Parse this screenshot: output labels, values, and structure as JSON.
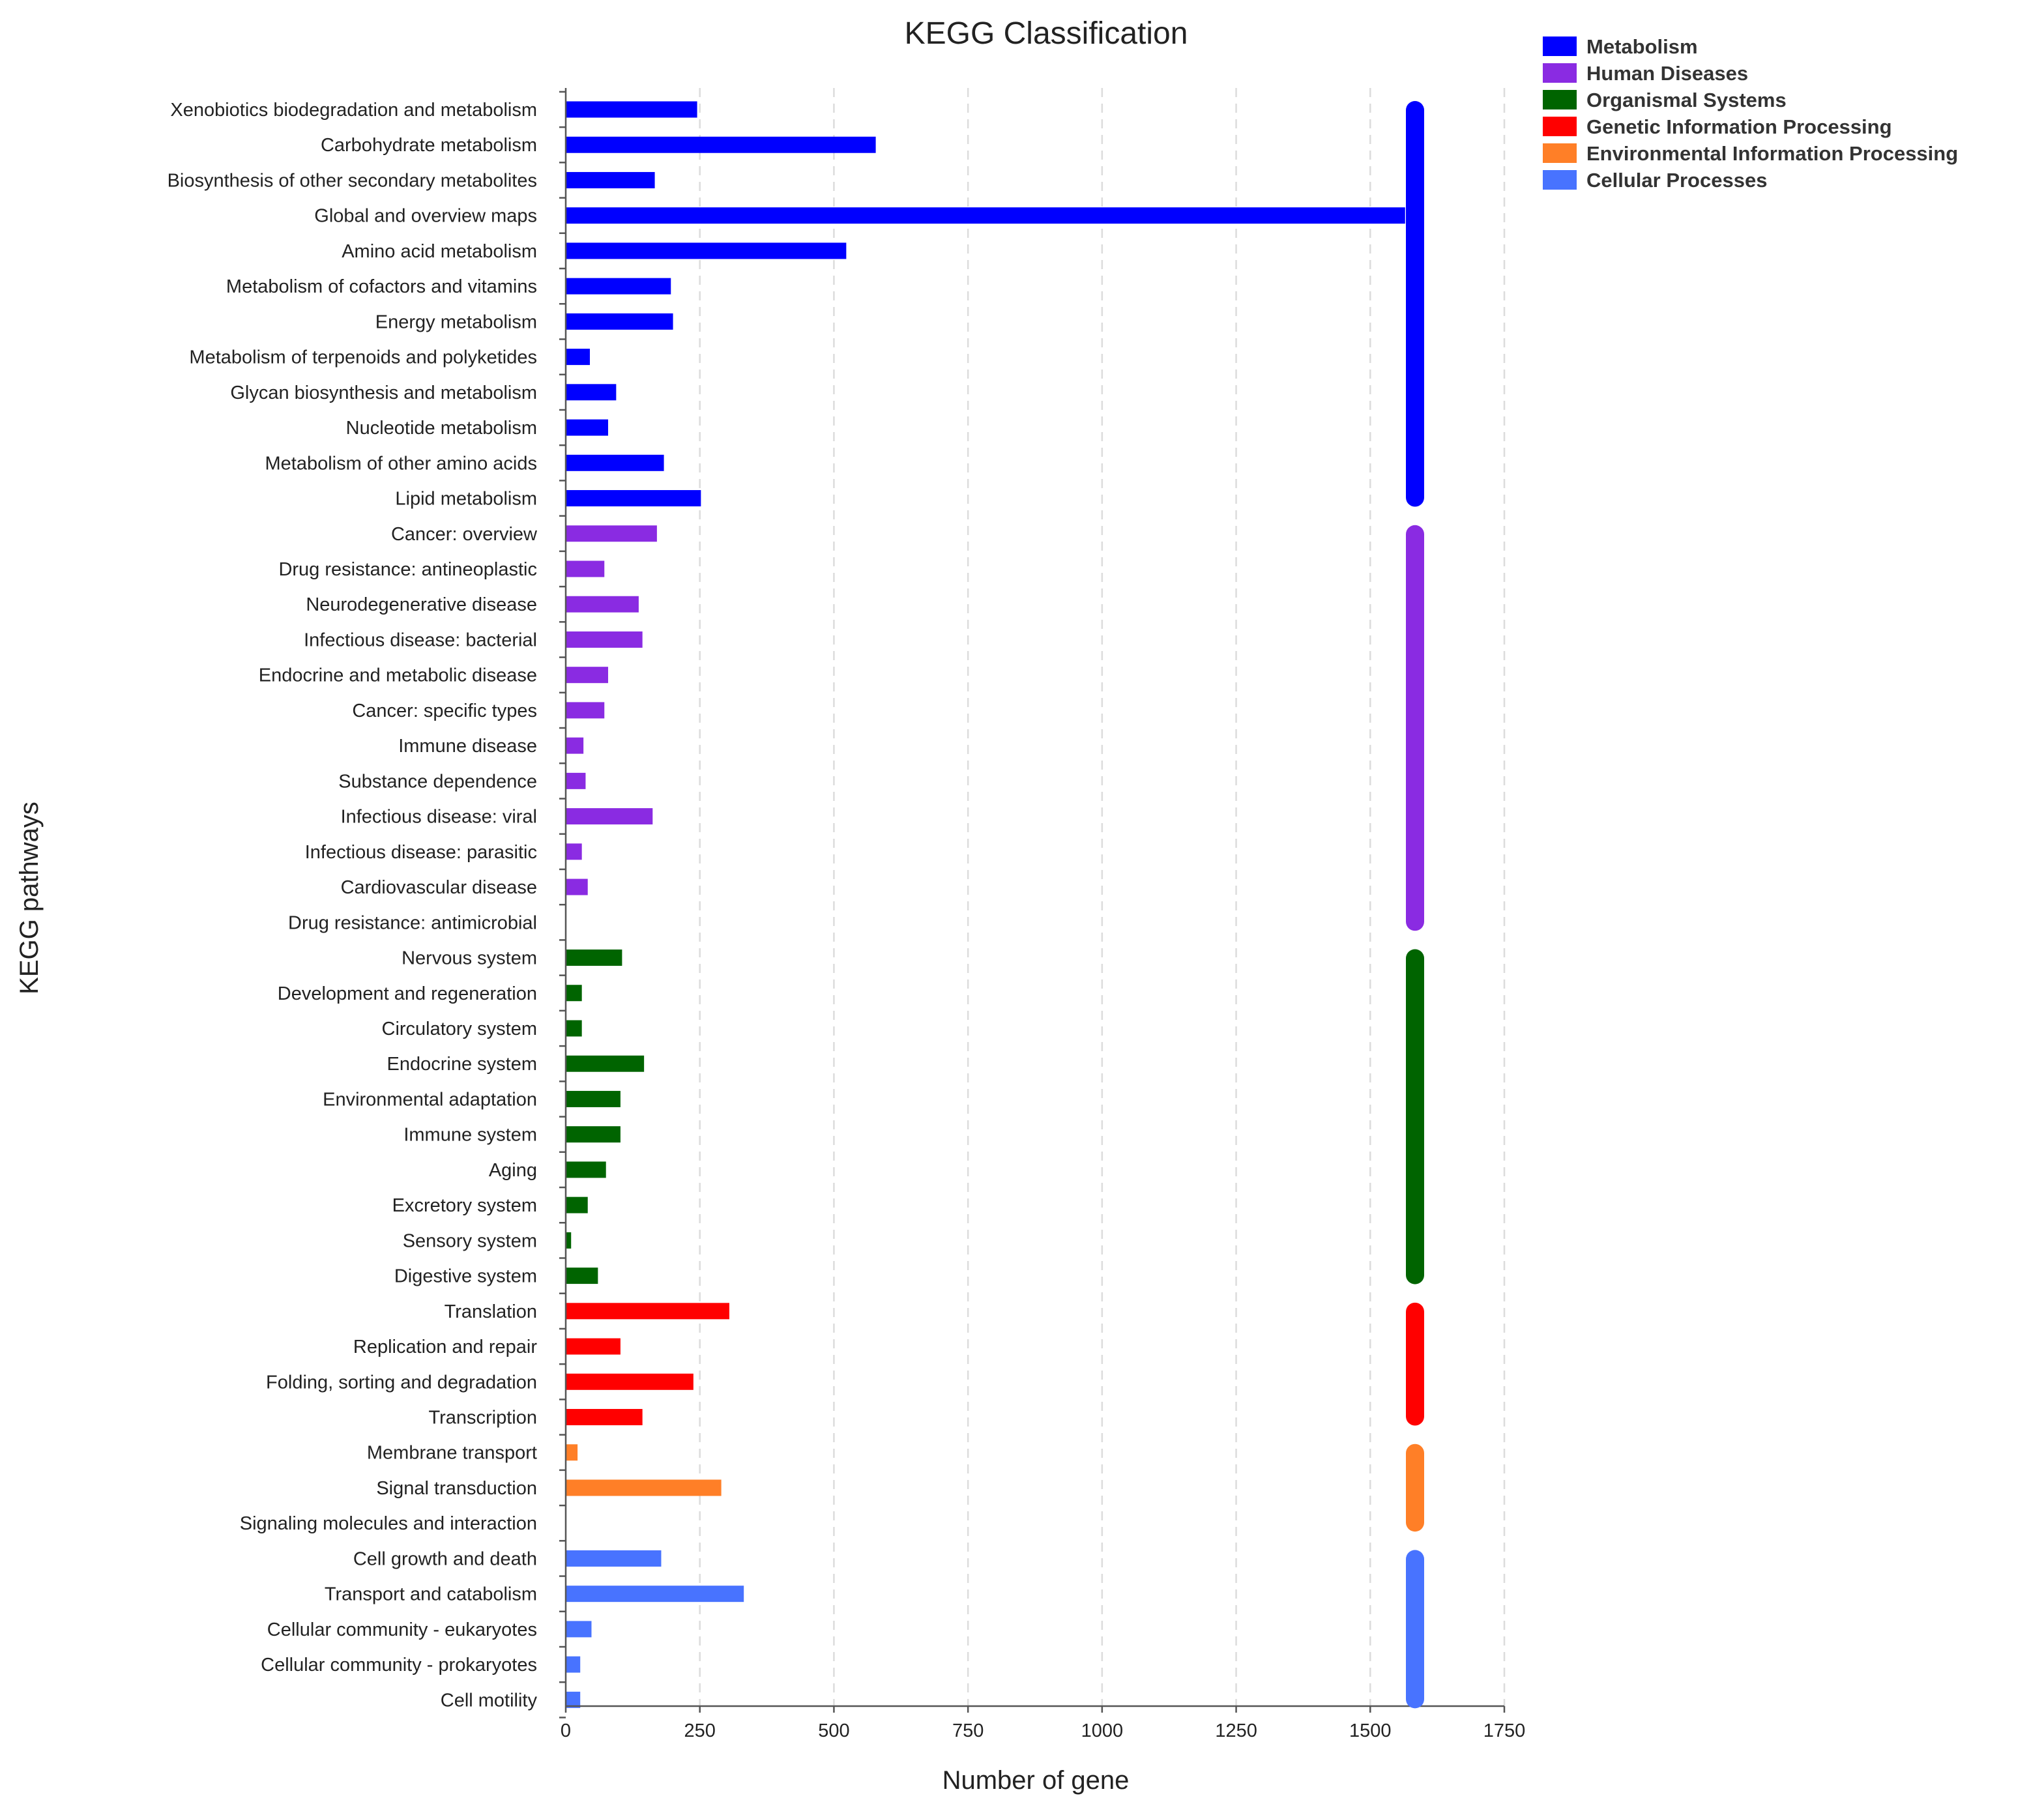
{
  "chart_data": {
    "type": "bar",
    "orientation": "horizontal",
    "title": "KEGG Classification",
    "xlabel": "Number of gene",
    "ylabel": "KEGG pathways",
    "xlim": [
      0,
      1750
    ],
    "xticks": [
      0,
      250,
      500,
      750,
      1000,
      1250,
      1500,
      1750
    ],
    "grid": "vertical dashed",
    "legend_position": "top-right",
    "groups": [
      {
        "name": "Metabolism",
        "color": "#0000ff",
        "items": [
          {
            "label": "Xenobiotics biodegradation and metabolism",
            "value": 245
          },
          {
            "label": "Carbohydrate metabolism",
            "value": 578
          },
          {
            "label": "Biosynthesis of other secondary metabolites",
            "value": 166
          },
          {
            "label": "Global and overview maps",
            "value": 1565
          },
          {
            "label": "Amino acid metabolism",
            "value": 523
          },
          {
            "label": "Metabolism of cofactors and vitamins",
            "value": 196
          },
          {
            "label": "Energy metabolism",
            "value": 200
          },
          {
            "label": "Metabolism of terpenoids and polyketides",
            "value": 45
          },
          {
            "label": "Glycan biosynthesis and metabolism",
            "value": 94
          },
          {
            "label": "Nucleotide metabolism",
            "value": 79
          },
          {
            "label": "Metabolism of other amino acids",
            "value": 183
          },
          {
            "label": "Lipid metabolism",
            "value": 252
          }
        ]
      },
      {
        "name": "Human Diseases",
        "color": "#8a2be2",
        "items": [
          {
            "label": "Cancer: overview",
            "value": 170
          },
          {
            "label": "Drug resistance: antineoplastic",
            "value": 72
          },
          {
            "label": "Neurodegenerative disease",
            "value": 136
          },
          {
            "label": "Infectious disease: bacterial",
            "value": 143
          },
          {
            "label": "Endocrine and metabolic disease",
            "value": 79
          },
          {
            "label": "Cancer: specific types",
            "value": 72
          },
          {
            "label": "Immune disease",
            "value": 33
          },
          {
            "label": "Substance dependence",
            "value": 37
          },
          {
            "label": "Infectious disease: viral",
            "value": 162
          },
          {
            "label": "Infectious disease: parasitic",
            "value": 30
          },
          {
            "label": "Cardiovascular disease",
            "value": 41
          },
          {
            "label": "Drug resistance: antimicrobial",
            "value": 0
          }
        ]
      },
      {
        "name": "Organismal Systems",
        "color": "#006400",
        "items": [
          {
            "label": "Nervous system",
            "value": 105
          },
          {
            "label": "Development and regeneration",
            "value": 30
          },
          {
            "label": "Circulatory system",
            "value": 30
          },
          {
            "label": "Endocrine system",
            "value": 146
          },
          {
            "label": "Environmental adaptation",
            "value": 102
          },
          {
            "label": "Immune system",
            "value": 102
          },
          {
            "label": "Aging",
            "value": 75
          },
          {
            "label": "Excretory system",
            "value": 41
          },
          {
            "label": "Sensory system",
            "value": 10
          },
          {
            "label": "Digestive system",
            "value": 60
          }
        ]
      },
      {
        "name": "Genetic Information Processing",
        "color": "#ff0000",
        "items": [
          {
            "label": "Translation",
            "value": 305
          },
          {
            "label": "Replication and repair",
            "value": 102
          },
          {
            "label": "Folding, sorting and degradation",
            "value": 238
          },
          {
            "label": "Transcription",
            "value": 143
          }
        ]
      },
      {
        "name": "Environmental Information Processing",
        "color": "#ff7f27",
        "items": [
          {
            "label": "Membrane transport",
            "value": 22
          },
          {
            "label": "Signal transduction",
            "value": 290
          },
          {
            "label": "Signaling molecules and interaction",
            "value": 0
          }
        ]
      },
      {
        "name": "Cellular Processes",
        "color": "#4873ff",
        "items": [
          {
            "label": "Cell growth and death",
            "value": 178
          },
          {
            "label": "Transport and catabolism",
            "value": 332
          },
          {
            "label": "Cellular community - eukaryotes",
            "value": 48
          },
          {
            "label": "Cellular community - prokaryotes",
            "value": 27
          },
          {
            "label": "Cell motility",
            "value": 27
          }
        ]
      }
    ]
  }
}
